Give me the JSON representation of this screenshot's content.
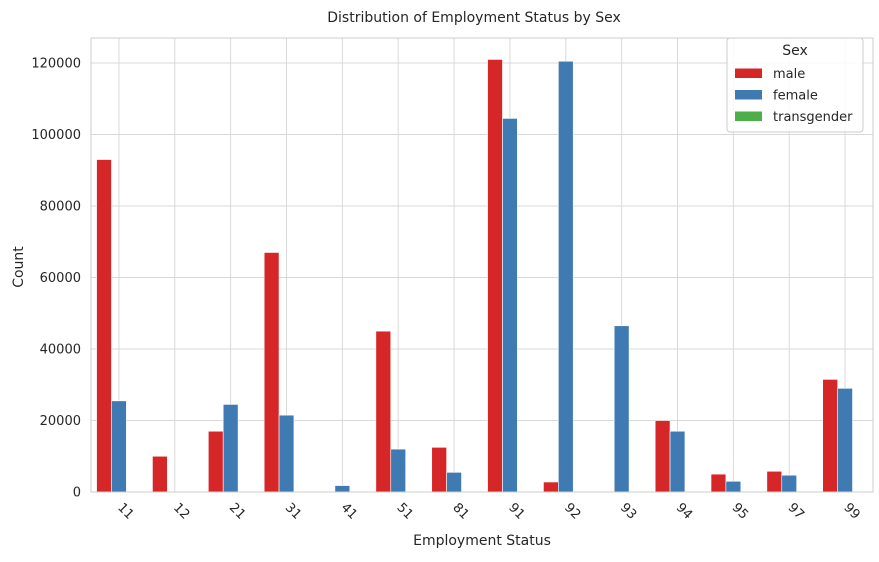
{
  "chart_data": {
    "type": "bar",
    "title": "Distribution of Employment Status by Sex",
    "xlabel": "Employment Status",
    "ylabel": "Count",
    "categories": [
      "11",
      "12",
      "21",
      "31",
      "41",
      "51",
      "81",
      "91",
      "92",
      "93",
      "94",
      "95",
      "97",
      "99"
    ],
    "ylim": [
      0,
      127000
    ],
    "yticks": [
      0,
      20000,
      40000,
      60000,
      80000,
      100000,
      120000
    ],
    "grid": true,
    "legend": {
      "title": "Sex",
      "placement": "top-right"
    },
    "series": [
      {
        "name": "male",
        "color": "#d62728",
        "values": [
          93000,
          10000,
          17000,
          67000,
          0,
          45000,
          12500,
          121000,
          2800,
          0,
          20000,
          5000,
          5800,
          31500
        ]
      },
      {
        "name": "female",
        "color": "#3f7bb2",
        "values": [
          25500,
          0,
          24500,
          21500,
          1800,
          12000,
          5500,
          104500,
          120500,
          46500,
          17000,
          3000,
          4700,
          29000
        ]
      },
      {
        "name": "transgender",
        "color": "#4daf4a",
        "values": [
          0,
          0,
          0,
          0,
          0,
          0,
          0,
          0,
          0,
          0,
          0,
          0,
          0,
          0
        ]
      }
    ]
  }
}
